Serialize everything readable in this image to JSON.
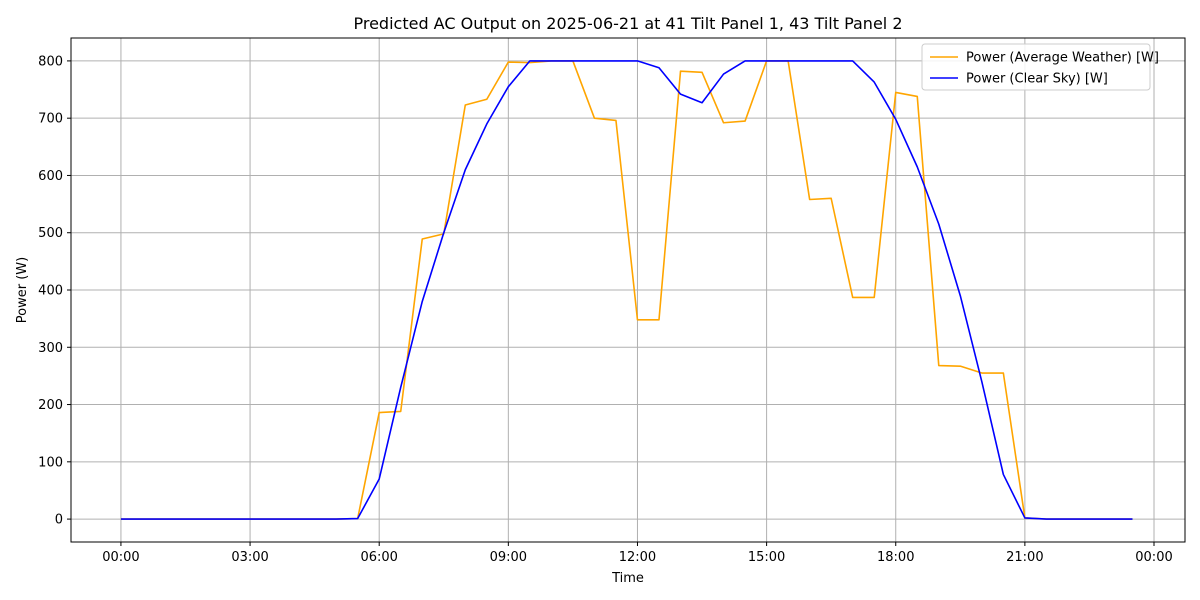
{
  "chart_data": {
    "type": "line",
    "title": "Predicted AC Output on 2025-06-21 at 41 Tilt Panel 1, 43 Tilt Panel 2",
    "xlabel": "Time",
    "ylabel": "Power (W)",
    "x_tick_labels": [
      "00:00",
      "03:00",
      "06:00",
      "09:00",
      "12:00",
      "15:00",
      "18:00",
      "21:00",
      "00:00"
    ],
    "x_ticks_hours": [
      0,
      3,
      6,
      9,
      12,
      15,
      18,
      21,
      24
    ],
    "xlim_hours": [
      -1.16,
      24.72
    ],
    "y_ticks": [
      0,
      100,
      200,
      300,
      400,
      500,
      600,
      700,
      800
    ],
    "ylim": [
      -40,
      840
    ],
    "grid": true,
    "legend_position": "top-right",
    "x_hours": [
      0,
      0.5,
      1,
      1.5,
      2,
      2.5,
      3,
      3.5,
      4,
      4.5,
      5,
      5.5,
      6,
      6.5,
      7,
      7.5,
      8,
      8.5,
      9,
      9.5,
      10,
      10.5,
      11,
      11.5,
      12,
      12.5,
      13,
      13.5,
      14,
      14.5,
      15,
      15.5,
      16,
      16.5,
      17,
      17.5,
      18,
      18.5,
      19,
      19.5,
      20,
      20.5,
      21,
      21.5,
      22,
      22.5,
      23,
      23.5
    ],
    "series": [
      {
        "name": "Power (Average Weather) [W]",
        "color": "#FFA500",
        "values": [
          0,
          0,
          0,
          0,
          0,
          0,
          0,
          0,
          0,
          0,
          0,
          1,
          186,
          188,
          489,
          498,
          723,
          733,
          798,
          797,
          800,
          800,
          700,
          696,
          348,
          348,
          782,
          780,
          692,
          695,
          800,
          800,
          558,
          560,
          387,
          387,
          745,
          738,
          268,
          267,
          255,
          255,
          2,
          0,
          0,
          0,
          0,
          0
        ]
      },
      {
        "name": "Power (Clear Sky) [W]",
        "color": "#0000FF",
        "values": [
          0,
          0,
          0,
          0,
          0,
          0,
          0,
          0,
          0,
          0,
          0,
          1,
          70,
          230,
          380,
          500,
          610,
          690,
          755,
          800,
          800,
          800,
          800,
          800,
          800,
          788,
          742,
          727,
          777,
          800,
          800,
          800,
          800,
          800,
          800,
          763,
          698,
          615,
          515,
          390,
          240,
          78,
          2,
          0,
          0,
          0,
          0,
          0
        ]
      }
    ]
  }
}
